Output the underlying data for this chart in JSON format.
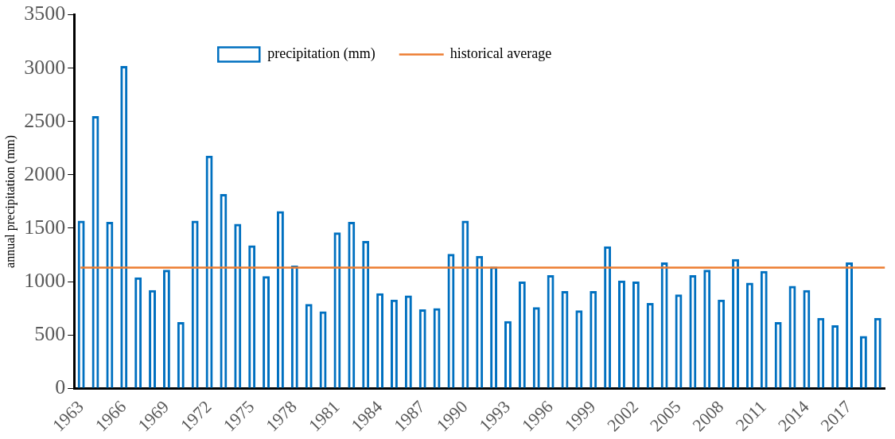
{
  "chart_data": {
    "type": "bar",
    "ylabel": "annual precipitation (mm)",
    "categories": [
      "1963",
      null,
      null,
      "1966",
      null,
      null,
      "1969",
      null,
      null,
      "1972",
      null,
      null,
      "1975",
      null,
      null,
      "1978",
      null,
      null,
      "1981",
      null,
      null,
      "1984",
      null,
      null,
      "1987",
      null,
      null,
      "1990",
      null,
      null,
      "1993",
      null,
      null,
      "1996",
      null,
      null,
      "1999",
      null,
      null,
      "2002",
      null,
      null,
      "2005",
      null,
      null,
      "2008",
      null,
      null,
      "2011",
      null,
      null,
      "2014",
      null,
      null,
      "2017",
      null,
      null
    ],
    "series": [
      {
        "name": "precipitation (mm)",
        "color": "#0070c0",
        "values": [
          1570,
          2550,
          1560,
          3020,
          1040,
          920,
          1110,
          620,
          1570,
          2180,
          1820,
          1540,
          1340,
          1050,
          1660,
          1150,
          790,
          720,
          1460,
          1560,
          1380,
          890,
          830,
          870,
          740,
          750,
          1260,
          1570,
          1240,
          1140,
          630,
          1000,
          760,
          1060,
          910,
          730,
          910,
          1330,
          1010,
          1000,
          800,
          1180,
          880,
          1060,
          1110,
          830,
          1210,
          990,
          1100,
          620,
          960,
          920,
          660,
          590,
          1180,
          490,
          660
        ]
      }
    ],
    "ref_lines": [
      {
        "axis": "y",
        "value": 1130,
        "label": "historical average",
        "color": "#ed7d31"
      }
    ],
    "ylim": [
      0,
      3500
    ],
    "yticks": [
      0,
      500,
      1000,
      1500,
      2000,
      2500,
      3000,
      3500
    ],
    "grid": false,
    "legend": "top"
  }
}
